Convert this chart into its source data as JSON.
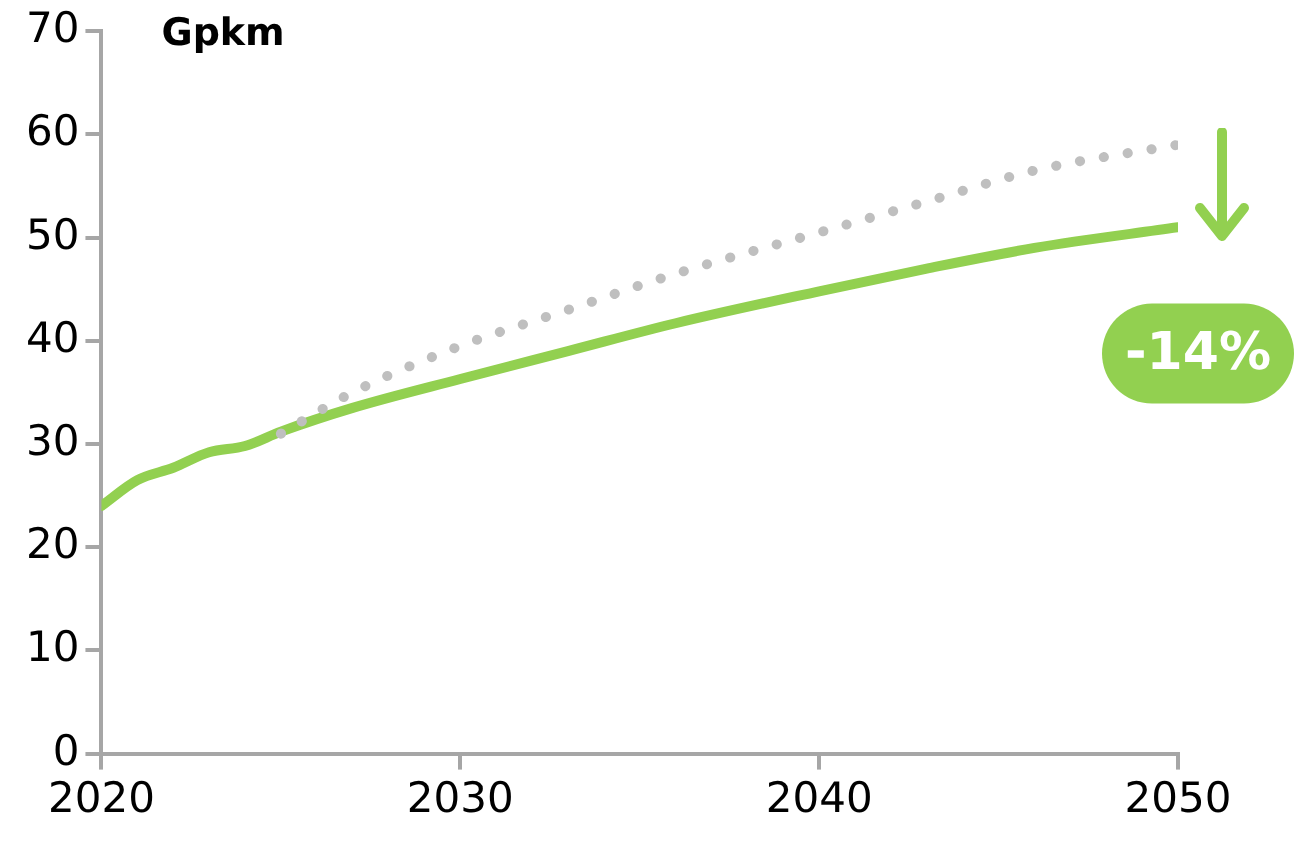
{
  "chart_data": {
    "type": "line",
    "ylabel": "Gpkm",
    "xlim": [
      2020,
      2050
    ],
    "xticks": [
      2020,
      2030,
      2040,
      2050
    ],
    "ylim": [
      0,
      70
    ],
    "yticks": [
      0,
      10,
      20,
      30,
      40,
      50,
      60,
      70
    ],
    "grid": false,
    "legend": false,
    "series": [
      {
        "color": "#bfbfbf",
        "line_style": "dotted",
        "x": [
          2025,
          2027,
          2030,
          2033,
          2036,
          2040,
          2043,
          2046,
          2050
        ],
        "values": [
          31,
          35,
          39.5,
          43,
          46.5,
          50.5,
          53.5,
          56.5,
          59
        ]
      },
      {
        "color": "#92d050",
        "line_style": "solid",
        "x": [
          2020,
          2021,
          2022,
          2023,
          2024,
          2025,
          2027,
          2030,
          2033,
          2036,
          2040,
          2043,
          2046,
          2050
        ],
        "values": [
          24,
          26.5,
          27.7,
          29.2,
          29.8,
          31.2,
          33.5,
          36.3,
          39,
          41.7,
          44.8,
          47,
          49,
          51
        ]
      }
    ],
    "annotations": [
      "-14%"
    ]
  }
}
